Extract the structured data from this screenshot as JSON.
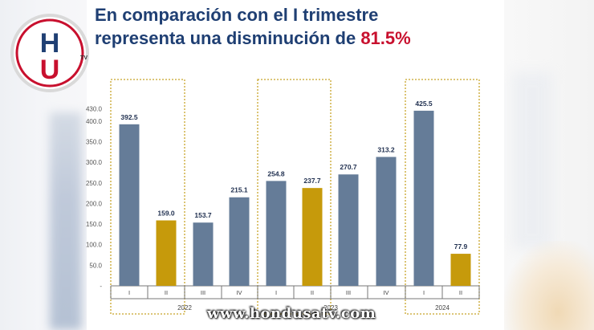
{
  "headline": {
    "line1": "En comparación con el I trimestre",
    "line2_prefix": "representa una disminución de ",
    "line2_highlight": "81.5%"
  },
  "watermark": "www.hondusatv.com",
  "logo_text": {
    "h": "H",
    "u": "U",
    "tv": "TV"
  },
  "colors": {
    "steel_blue": "#657C98",
    "mustard": "#C69A0B",
    "title_blue": "#1F3F73",
    "highlight_red": "#C8102E",
    "box_dash": "#C8A528"
  },
  "chart_data": {
    "type": "bar",
    "yticks": [
      "430.0",
      "400.0",
      "350.0",
      "300.0",
      "250.0",
      "200.0",
      "150.0",
      "100.0",
      "50.0",
      "-"
    ],
    "ylim": [
      0,
      430
    ],
    "groups": [
      {
        "year": "2022",
        "bars": [
          {
            "q": "I",
            "value": 392.5,
            "label": "392.5",
            "color": "blue"
          },
          {
            "q": "II",
            "value": 159.0,
            "label": "159.0",
            "color": "gold"
          },
          {
            "q": "III",
            "value": 153.7,
            "label": "153.7",
            "color": "blue"
          },
          {
            "q": "IV",
            "value": 215.1,
            "label": "215.1",
            "color": "blue"
          }
        ]
      },
      {
        "year": "2023",
        "bars": [
          {
            "q": "I",
            "value": 254.8,
            "label": "254.8",
            "color": "blue"
          },
          {
            "q": "II",
            "value": 237.7,
            "label": "237.7",
            "color": "gold"
          },
          {
            "q": "III",
            "value": 270.7,
            "label": "270.7",
            "color": "blue"
          },
          {
            "q": "IV",
            "value": 313.2,
            "label": "313.2",
            "color": "blue"
          }
        ]
      },
      {
        "year": "2024",
        "bars": [
          {
            "q": "I",
            "value": 425.5,
            "label": "425.5",
            "color": "blue"
          },
          {
            "q": "II",
            "value": 77.9,
            "label": "77.9",
            "color": "gold"
          }
        ]
      }
    ],
    "highlight_boxes": [
      [
        "2022",
        "I",
        "II"
      ],
      [
        "2023",
        "I",
        "II"
      ],
      [
        "2024",
        "I",
        "II"
      ]
    ]
  }
}
